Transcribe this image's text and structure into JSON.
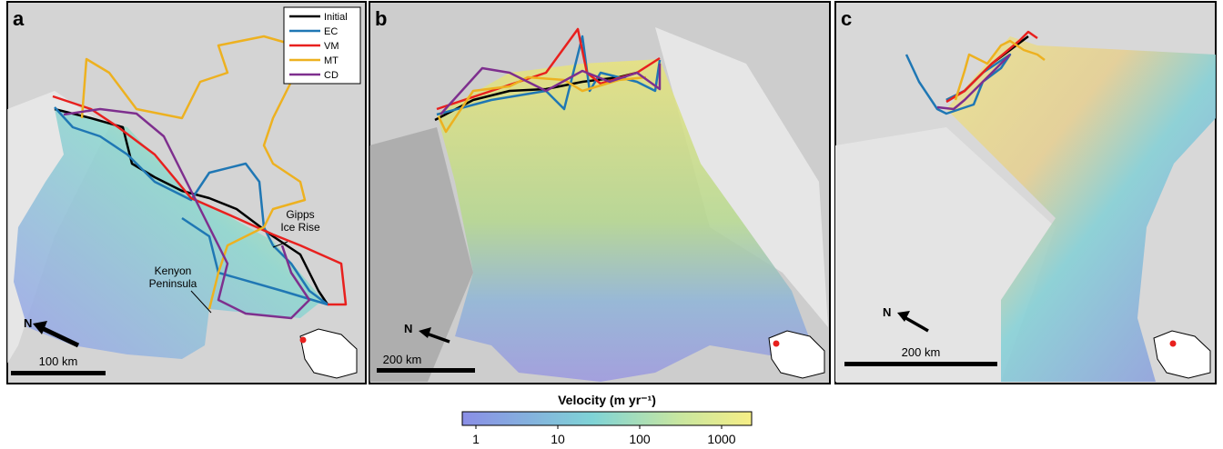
{
  "panels": [
    {
      "label": "a",
      "north": "N",
      "scale": "100 km",
      "annotations": [
        "Gipps\nIce Rise",
        "Kenyon\nPeninsula"
      ]
    },
    {
      "label": "b",
      "north": "N",
      "scale": "200 km"
    },
    {
      "label": "c",
      "north": "N",
      "scale": "200 km"
    }
  ],
  "legend": [
    {
      "name": "Initial",
      "color": "#000000"
    },
    {
      "name": "EC",
      "color": "#1f77b4"
    },
    {
      "name": "VM",
      "color": "#e8201e"
    },
    {
      "name": "MT",
      "color": "#edb120"
    },
    {
      "name": "CD",
      "color": "#7e2f8e"
    }
  ],
  "colorbar": {
    "title": "Velocity (m yr⁻¹)",
    "ticks": [
      1,
      10,
      100,
      1000
    ],
    "log_scale": true
  }
}
